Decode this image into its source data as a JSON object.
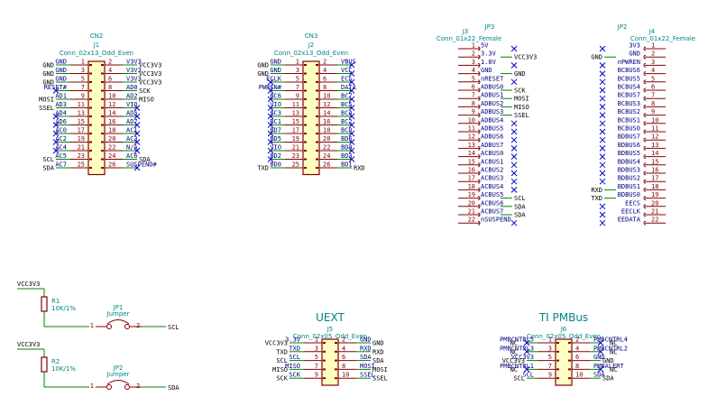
{
  "colors": {
    "wire": "#008400",
    "body": "#840000",
    "fill": "#ffffc2",
    "label": "#000000",
    "pin": "#840000",
    "signal": "#000084",
    "ref": "#008484",
    "nc": "#0000c8"
  },
  "cn2": {
    "header": "CN2",
    "ref": "J1",
    "value": "Conn_02x13_Odd_Even",
    "pins": [
      [
        "1",
        "GND",
        "GND",
        "2",
        "V3V3",
        "VCC3V3"
      ],
      [
        "3",
        "GND",
        "GND",
        "4",
        "V3V3",
        "VCC3V3"
      ],
      [
        "5",
        "GND",
        "GND",
        "6",
        "V3V3",
        "VCC3V3"
      ],
      [
        "7",
        "RESET#",
        "",
        "8",
        "AD0",
        "SCK"
      ],
      [
        "9",
        "AD1",
        "MOSI",
        "10",
        "AD2",
        "MISO"
      ],
      [
        "11",
        "AD3",
        "SSEL",
        "12",
        "VIO",
        ""
      ],
      [
        "13",
        "AD4",
        "",
        "14",
        "AD5",
        ""
      ],
      [
        "15",
        "AD6",
        "",
        "16",
        "AD7",
        ""
      ],
      [
        "17",
        "AC0",
        "",
        "18",
        "AC1",
        ""
      ],
      [
        "19",
        "AC2",
        "",
        "20",
        "AC3",
        ""
      ],
      [
        "21",
        "AC4",
        "",
        "22",
        "N/A",
        ""
      ],
      [
        "23",
        "AC5",
        "SCL",
        "24",
        "AC6",
        "SDA"
      ],
      [
        "25",
        "AC7",
        "SDA",
        "26",
        "SUSPEND#",
        ""
      ]
    ]
  },
  "cn3": {
    "header": "CN3",
    "ref": "J2",
    "value": "Conn_02x13_Odd_Even",
    "pins": [
      [
        "1",
        "GND",
        "GND",
        "2",
        "VBUS",
        ""
      ],
      [
        "3",
        "GND",
        "GND",
        "4",
        "VCC",
        ""
      ],
      [
        "5",
        "ECLK",
        "",
        "6",
        "ECS",
        ""
      ],
      [
        "7",
        "PWREN#",
        "",
        "8",
        "DATA",
        ""
      ],
      [
        "9",
        "BC6",
        "",
        "10",
        "BC7",
        ""
      ],
      [
        "11",
        "VIO",
        "",
        "12",
        "BC5",
        ""
      ],
      [
        "13",
        "BC3",
        "",
        "14",
        "BC4",
        ""
      ],
      [
        "15",
        "BC1",
        "",
        "16",
        "BC2",
        ""
      ],
      [
        "17",
        "BD7",
        "",
        "18",
        "BC0",
        ""
      ],
      [
        "19",
        "BD5",
        "",
        "20",
        "BD6",
        ""
      ],
      [
        "21",
        "VIO",
        "",
        "22",
        "BD4",
        ""
      ],
      [
        "23",
        "BD2",
        "",
        "24",
        "BD3",
        ""
      ],
      [
        "25",
        "BD0",
        "TXD",
        "26",
        "BD1",
        "RXD"
      ]
    ]
  },
  "jp3": {
    "header": "JP3",
    "ref": "J3",
    "value": "Conn_01x22_Female",
    "pins": [
      [
        "1",
        "5V",
        ""
      ],
      [
        "2",
        "3.3V",
        "VCC3V3"
      ],
      [
        "3",
        "1.8V",
        ""
      ],
      [
        "4",
        "GND",
        "GND"
      ],
      [
        "5",
        "nRESET",
        ""
      ],
      [
        "6",
        "ADBUS0",
        "SCK"
      ],
      [
        "7",
        "ADBUS1",
        "MOSI"
      ],
      [
        "8",
        "ADBUS2",
        "MISO"
      ],
      [
        "9",
        "ADBUS3",
        "SSEL"
      ],
      [
        "10",
        "ADBUS4",
        ""
      ],
      [
        "11",
        "ADBUS5",
        ""
      ],
      [
        "12",
        "ADBUS6",
        ""
      ],
      [
        "13",
        "ADBUS7",
        ""
      ],
      [
        "14",
        "ACBUS0",
        ""
      ],
      [
        "15",
        "ACBUS1",
        ""
      ],
      [
        "16",
        "ACBUS2",
        ""
      ],
      [
        "17",
        "ACBUS3",
        ""
      ],
      [
        "18",
        "ACBUS4",
        ""
      ],
      [
        "19",
        "ACBUS5",
        "SCL"
      ],
      [
        "20",
        "ACBUS6",
        "SDA"
      ],
      [
        "21",
        "ACBUS7",
        "SDA"
      ],
      [
        "22",
        "nSUSPEND",
        ""
      ]
    ]
  },
  "jp2": {
    "header": "JP2",
    "ref": "J4",
    "value": "Conn_01x22_Female",
    "pins": [
      [
        "1",
        "3V3",
        ""
      ],
      [
        "2",
        "GND",
        "GND"
      ],
      [
        "3",
        "nPWREN",
        ""
      ],
      [
        "4",
        "BCBUS6",
        ""
      ],
      [
        "5",
        "BCBUS5",
        ""
      ],
      [
        "6",
        "BCBUS4",
        ""
      ],
      [
        "7",
        "BCBUS7",
        ""
      ],
      [
        "8",
        "BCBUS3",
        ""
      ],
      [
        "9",
        "BCBUS2",
        ""
      ],
      [
        "10",
        "BCBUS1",
        ""
      ],
      [
        "11",
        "BCBUS0",
        ""
      ],
      [
        "12",
        "BDBUS7",
        ""
      ],
      [
        "13",
        "BDBUS6",
        ""
      ],
      [
        "14",
        "BDBUS5",
        ""
      ],
      [
        "15",
        "BDBUS4",
        ""
      ],
      [
        "16",
        "BDBUS3",
        ""
      ],
      [
        "17",
        "BDBUS2",
        ""
      ],
      [
        "18",
        "BDBUS1",
        "RXD"
      ],
      [
        "19",
        "BDBUS0",
        "TXD"
      ],
      [
        "20",
        "EECS",
        ""
      ],
      [
        "21",
        "EECLK",
        ""
      ],
      [
        "22",
        "EEDATA",
        ""
      ]
    ]
  },
  "uext": {
    "title": "UEXT",
    "ref": "J5",
    "value": "Conn_02x05_Odd_Even",
    "pins": [
      [
        "1",
        "3.3V",
        "VCC3V3",
        "2",
        "GND",
        "GND"
      ],
      [
        "3",
        "TXD",
        "TXD",
        "4",
        "RXD",
        "RXD"
      ],
      [
        "5",
        "SCL",
        "SCL",
        "6",
        "SDA",
        "SDA"
      ],
      [
        "7",
        "MISO",
        "MISO",
        "8",
        "MOSI",
        "MOSI"
      ],
      [
        "9",
        "SCK",
        "SCK",
        "10",
        "SSEL",
        "SSEL"
      ]
    ]
  },
  "pmbus": {
    "title": "TI PMBus",
    "ref": "J6",
    "value": "Conn_02x05_Odd_Even",
    "pins": [
      [
        "1",
        "PMBCNTRL5",
        "NC",
        "2",
        "PMBCNTRL4",
        "NC"
      ],
      [
        "3",
        "PMBCNTRL3",
        "NC",
        "4",
        "PMBCNTRL2",
        "NC"
      ],
      [
        "5",
        "VCC3V3",
        "VCC3V3",
        "6",
        "GND",
        "GND"
      ],
      [
        "7",
        "PMBCNTRL1",
        "NC",
        "8",
        "PMBALERT",
        "NC"
      ],
      [
        "9",
        "SCL",
        "SCL",
        "10",
        "SDA",
        "SDA"
      ]
    ]
  },
  "r1": {
    "supply": "VCC3V3",
    "ref": "R1",
    "value": "10K/1%",
    "jp_ref": "JP1",
    "jp_value": "Jumper",
    "pin1": "1",
    "pin2": "2",
    "net": "SCL"
  },
  "r2": {
    "supply": "VCC3V3",
    "ref": "R2",
    "value": "10K/1%",
    "jp_ref": "JP2",
    "jp_value": "Jumper",
    "pin1": "1",
    "pin2": "2",
    "net": "SDA"
  }
}
